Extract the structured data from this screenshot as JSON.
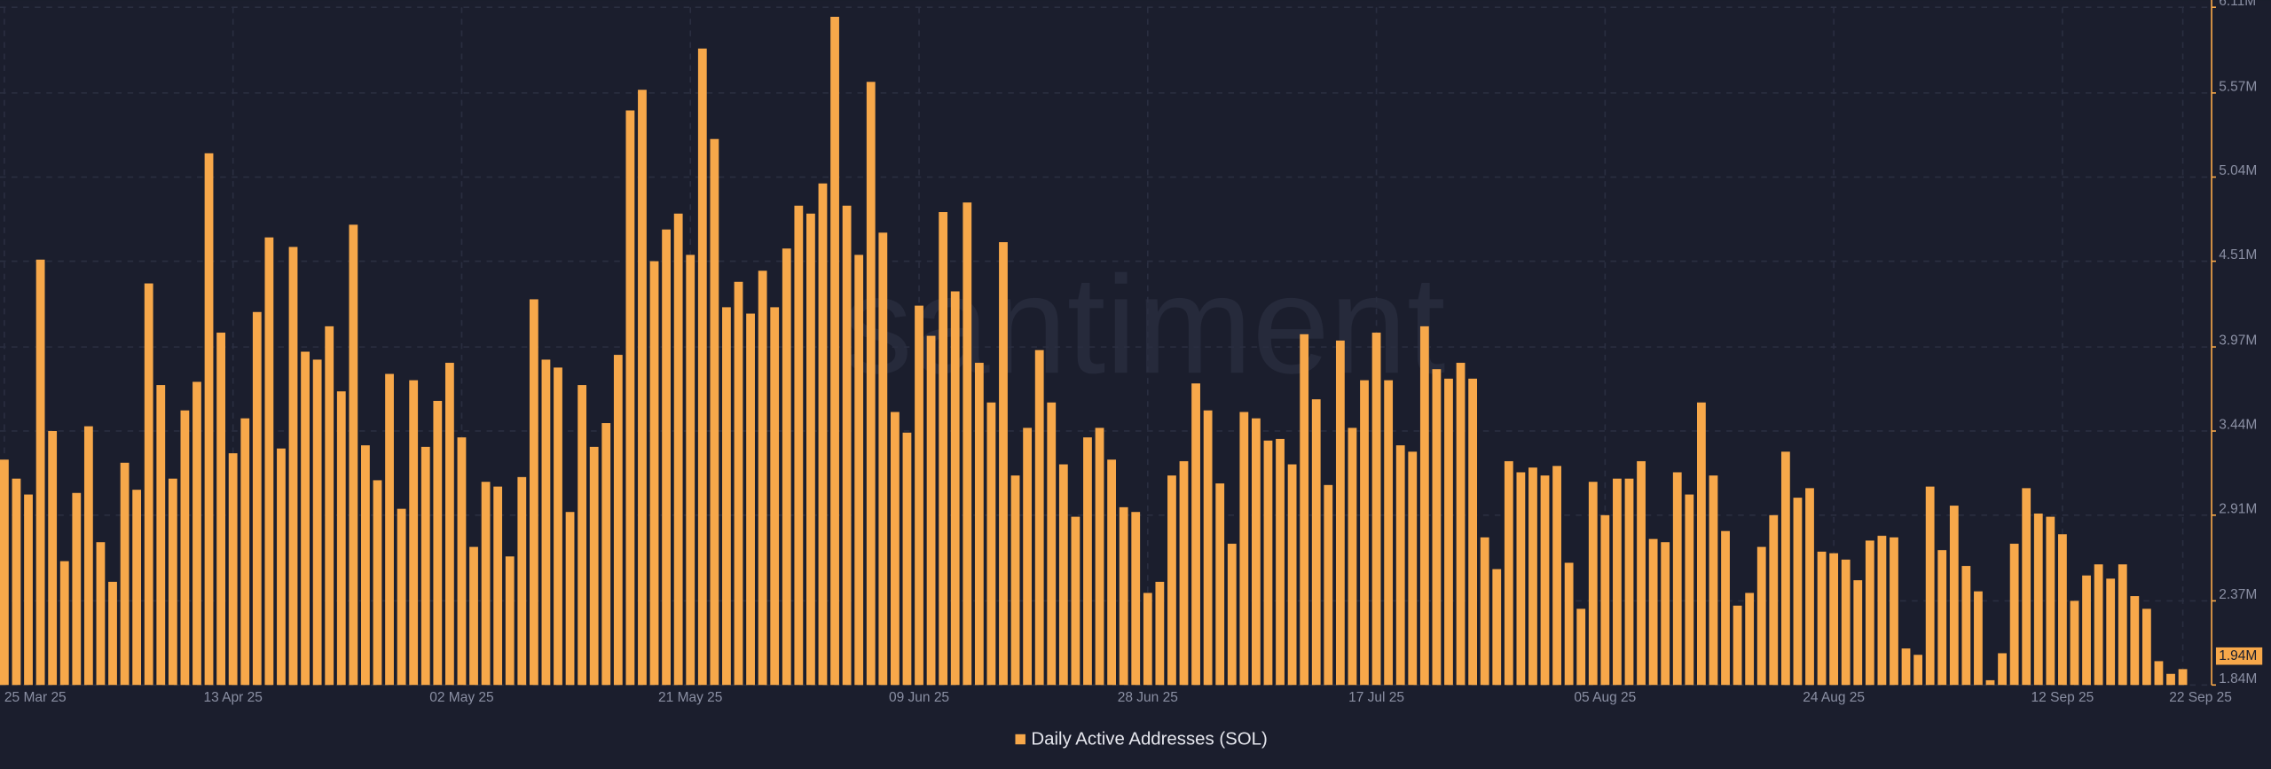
{
  "chart_data": {
    "type": "bar",
    "watermark": "santiment",
    "categories": [
      "25 Mar 25",
      null,
      null,
      null,
      null,
      null,
      null,
      null,
      null,
      null,
      null,
      null,
      null,
      null,
      null,
      null,
      null,
      null,
      null,
      "13 Apr 25",
      null,
      null,
      null,
      null,
      null,
      null,
      null,
      null,
      null,
      null,
      null,
      null,
      null,
      null,
      null,
      null,
      null,
      null,
      "02 May 25",
      null,
      null,
      null,
      null,
      null,
      null,
      null,
      null,
      null,
      null,
      null,
      null,
      null,
      null,
      null,
      null,
      null,
      null,
      "21 May 25",
      null,
      null,
      null,
      null,
      null,
      null,
      null,
      null,
      null,
      null,
      null,
      null,
      null,
      null,
      null,
      null,
      null,
      null,
      "09 Jun 25",
      null,
      null,
      null,
      null,
      null,
      null,
      null,
      null,
      null,
      null,
      null,
      null,
      null,
      null,
      null,
      null,
      null,
      null,
      "28 Jun 25",
      null,
      null,
      null,
      null,
      null,
      null,
      null,
      null,
      null,
      null,
      null,
      null,
      null,
      null,
      null,
      null,
      null,
      null,
      "17 Jul 25",
      null,
      null,
      null,
      null,
      null,
      null,
      null,
      null,
      null,
      null,
      null,
      null,
      null,
      null,
      null,
      null,
      null,
      null,
      "05 Aug 25",
      null,
      null,
      null,
      null,
      null,
      null,
      null,
      null,
      null,
      null,
      null,
      null,
      null,
      null,
      null,
      null,
      null,
      null,
      "24 Aug 25",
      null,
      null,
      null,
      null,
      null,
      null,
      null,
      null,
      null,
      null,
      null,
      null,
      null,
      null,
      null,
      null,
      null,
      null,
      "12 Sep 25",
      null,
      null,
      null,
      null,
      null,
      null,
      null,
      null,
      null,
      "22 Sep 25"
    ],
    "series": [
      {
        "name": "Daily Active Addresses (SOL)",
        "color": "#f7a84a",
        "values": [
          3.26,
          3.14,
          3.04,
          4.52,
          3.44,
          2.62,
          3.05,
          3.47,
          2.74,
          2.49,
          3.24,
          3.07,
          4.37,
          3.73,
          3.14,
          3.57,
          3.75,
          5.19,
          4.06,
          3.3,
          3.52,
          4.19,
          4.66,
          3.33,
          4.6,
          3.94,
          3.89,
          4.1,
          3.69,
          4.74,
          3.35,
          3.13,
          3.8,
          2.95,
          3.76,
          3.34,
          3.63,
          3.87,
          3.4,
          2.71,
          3.12,
          3.09,
          2.65,
          3.15,
          4.27,
          3.89,
          3.84,
          2.93,
          3.73,
          3.34,
          3.49,
          3.92,
          5.46,
          5.59,
          4.51,
          4.71,
          4.81,
          4.55,
          5.85,
          5.28,
          4.22,
          4.38,
          4.18,
          4.45,
          4.22,
          4.59,
          4.86,
          4.81,
          5.0,
          6.05,
          4.86,
          4.55,
          5.64,
          4.69,
          3.56,
          3.43,
          4.23,
          4.04,
          4.82,
          4.32,
          4.88,
          3.87,
          3.62,
          4.63,
          3.16,
          3.46,
          3.95,
          3.62,
          3.23,
          2.9,
          3.4,
          3.46,
          3.26,
          2.96,
          2.93,
          2.42,
          2.49,
          3.16,
          3.25,
          3.74,
          3.57,
          3.11,
          2.73,
          3.56,
          3.52,
          3.38,
          3.39,
          3.23,
          4.05,
          3.64,
          3.1,
          4.01,
          3.46,
          3.76,
          4.06,
          3.76,
          3.35,
          3.31,
          4.1,
          3.83,
          3.77,
          3.87,
          3.77,
          2.77,
          2.57,
          3.25,
          3.18,
          3.21,
          3.16,
          3.22,
          2.61,
          2.32,
          3.12,
          2.91,
          3.14,
          3.14,
          3.25,
          2.76,
          2.74,
          3.18,
          3.04,
          3.62,
          3.16,
          2.81,
          2.34,
          2.42,
          2.71,
          2.91,
          3.31,
          3.02,
          3.08,
          2.68,
          2.67,
          2.63,
          2.5,
          2.75,
          2.78,
          2.77,
          2.07,
          2.03,
          3.09,
          2.69,
          2.97,
          2.59,
          2.43,
          1.87,
          2.04,
          2.73,
          3.08,
          2.92,
          2.9,
          2.79,
          2.37,
          2.53,
          2.6,
          2.51,
          2.6,
          2.4,
          2.32,
          1.99,
          1.91,
          1.94
        ]
      }
    ],
    "ylim": [
      1.84,
      6.11
    ],
    "yticks": [
      {
        "value": 1.84,
        "label": "1.84M"
      },
      {
        "value": 2.37,
        "label": "2.37M"
      },
      {
        "value": 2.91,
        "label": "2.91M"
      },
      {
        "value": 3.44,
        "label": "3.44M"
      },
      {
        "value": 3.97,
        "label": "3.97M"
      },
      {
        "value": 4.51,
        "label": "4.51M"
      },
      {
        "value": 5.04,
        "label": "5.04M"
      },
      {
        "value": 5.57,
        "label": "5.57M"
      },
      {
        "value": 6.11,
        "label": "6.11M"
      }
    ],
    "current_value": {
      "value": 1.94,
      "label": "1.94M"
    },
    "grid": true,
    "legend": "bottom"
  }
}
